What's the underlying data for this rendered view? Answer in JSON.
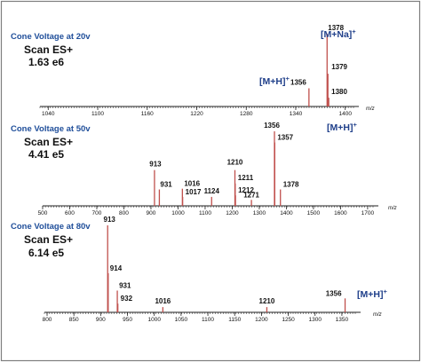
{
  "colors": {
    "frame": "#7f7f7f",
    "axis": "#222222",
    "peak": "#c0504d",
    "title": "#1f4e9a",
    "ion": "#1f3f8a",
    "text": "#111111"
  },
  "chart_data": [
    {
      "type": "bar",
      "title": "Cone Voltage at 20v",
      "subtitle_lines": [
        "Scan ES+",
        "1.63 e6"
      ],
      "xlabel": "m/z",
      "xlim": [
        1030,
        1410
      ],
      "ylim": [
        0,
        100
      ],
      "ticks": [
        1040,
        1100,
        1160,
        1220,
        1280,
        1340,
        1400
      ],
      "peaks": [
        {
          "x": 1356,
          "y": 25,
          "label": "1356"
        },
        {
          "x": 1378,
          "y": 100,
          "label": "1378"
        },
        {
          "x": 1379,
          "y": 45,
          "label": "1379"
        },
        {
          "x": 1380,
          "y": 12,
          "label": "1380"
        }
      ],
      "ion_labels": [
        {
          "text": "[M+H]",
          "sup": "+",
          "near": 1356
        },
        {
          "text": "[M+Na]",
          "sup": "+",
          "near": 1378
        }
      ]
    },
    {
      "type": "bar",
      "title": "Cone Voltage at 50v",
      "subtitle_lines": [
        "Scan ES+",
        "4.41 e5"
      ],
      "xlabel": "m/z",
      "xlim": [
        500,
        1720
      ],
      "ylim": [
        0,
        100
      ],
      "ticks": [
        500,
        600,
        700,
        800,
        900,
        1000,
        1100,
        1200,
        1300,
        1400,
        1500,
        1600,
        1700
      ],
      "peaks": [
        {
          "x": 913,
          "y": 48,
          "label": "913"
        },
        {
          "x": 931,
          "y": 22,
          "label": "931"
        },
        {
          "x": 1016,
          "y": 23,
          "label": "1016"
        },
        {
          "x": 1017,
          "y": 12,
          "label": "1017"
        },
        {
          "x": 1124,
          "y": 12,
          "label": "1124"
        },
        {
          "x": 1210,
          "y": 48,
          "label": "1210"
        },
        {
          "x": 1211,
          "y": 30,
          "label": "1211"
        },
        {
          "x": 1212,
          "y": 14,
          "label": "1212"
        },
        {
          "x": 1271,
          "y": 8,
          "label": "1271"
        },
        {
          "x": 1356,
          "y": 100,
          "label": "1356"
        },
        {
          "x": 1357,
          "y": 85,
          "label": "1357"
        },
        {
          "x": 1378,
          "y": 22,
          "label": "1378"
        }
      ],
      "ion_labels": [
        {
          "text": "[M+H]",
          "sup": "+",
          "near": 1356
        }
      ]
    },
    {
      "type": "bar",
      "title": "Cone Voltage at 80v",
      "subtitle_lines": [
        "Scan ES+",
        "6.14 e5"
      ],
      "xlabel": "m/z",
      "xlim": [
        795,
        1375
      ],
      "ylim": [
        0,
        100
      ],
      "ticks": [
        800,
        850,
        900,
        950,
        1000,
        1050,
        1100,
        1150,
        1200,
        1250,
        1300,
        1350
      ],
      "peaks": [
        {
          "x": 913,
          "y": 100,
          "label": "913"
        },
        {
          "x": 914,
          "y": 45,
          "label": "914"
        },
        {
          "x": 931,
          "y": 25,
          "label": "931"
        },
        {
          "x": 932,
          "y": 10,
          "label": "932"
        },
        {
          "x": 1016,
          "y": 6,
          "label": "1016"
        },
        {
          "x": 1210,
          "y": 6,
          "label": "1210"
        },
        {
          "x": 1356,
          "y": 16,
          "label": "1356"
        }
      ],
      "ion_labels": [
        {
          "text": "[M+H]",
          "sup": "+",
          "near": 1356
        }
      ]
    }
  ]
}
